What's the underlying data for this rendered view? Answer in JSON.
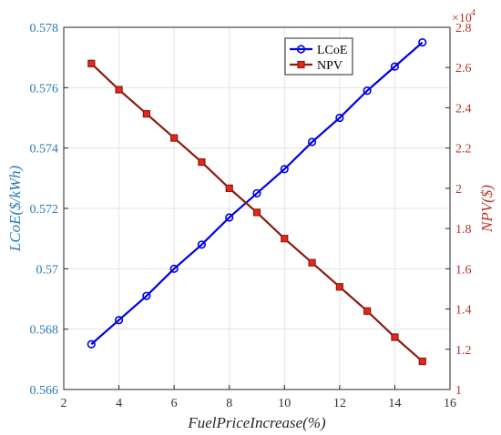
{
  "chart_data": {
    "type": "line",
    "xlabel": "FuelPriceIncrease(%)",
    "ylabel_left": "LCoE($/kWh)",
    "ylabel_right": "NPV($)",
    "right_exponent_base": "×10",
    "right_exponent_power": "4",
    "xlim": [
      2,
      16
    ],
    "xticks": [
      "2",
      "4",
      "6",
      "8",
      "10",
      "12",
      "14",
      "16"
    ],
    "ylim_left": [
      0.566,
      0.578
    ],
    "yticks_left": [
      "0.566",
      "0.568",
      "0.57",
      "0.572",
      "0.574",
      "0.576",
      "0.578"
    ],
    "ylim_right": [
      1,
      2.8
    ],
    "yticks_right": [
      "1",
      "1.2",
      "1.4",
      "1.6",
      "1.8",
      "2",
      "2.2",
      "2.4",
      "2.6",
      "2.8"
    ],
    "grid": true,
    "legend_position": "top-right",
    "x": [
      3,
      4,
      5,
      6,
      7,
      8,
      9,
      10,
      11,
      12,
      13,
      14,
      15
    ],
    "series": [
      {
        "name": "LCoE",
        "axis": "left",
        "color": "#0000e6",
        "marker": "circle",
        "values": [
          0.5675,
          0.5683,
          0.5691,
          0.57,
          0.5708,
          0.5717,
          0.5725,
          0.5733,
          0.5742,
          0.575,
          0.5759,
          0.5767,
          0.5775
        ]
      },
      {
        "name": "NPV",
        "axis": "right",
        "color": "#8b1a10",
        "marker_fill": "#e8261a",
        "marker": "square",
        "values": [
          2.62,
          2.49,
          2.37,
          2.25,
          2.13,
          2.0,
          1.88,
          1.75,
          1.63,
          1.51,
          1.39,
          1.26,
          1.14
        ]
      }
    ]
  },
  "colors": {
    "left_axis": "#2a7ab8",
    "right_axis": "#b5362a",
    "grid": "#e3e3e3"
  }
}
